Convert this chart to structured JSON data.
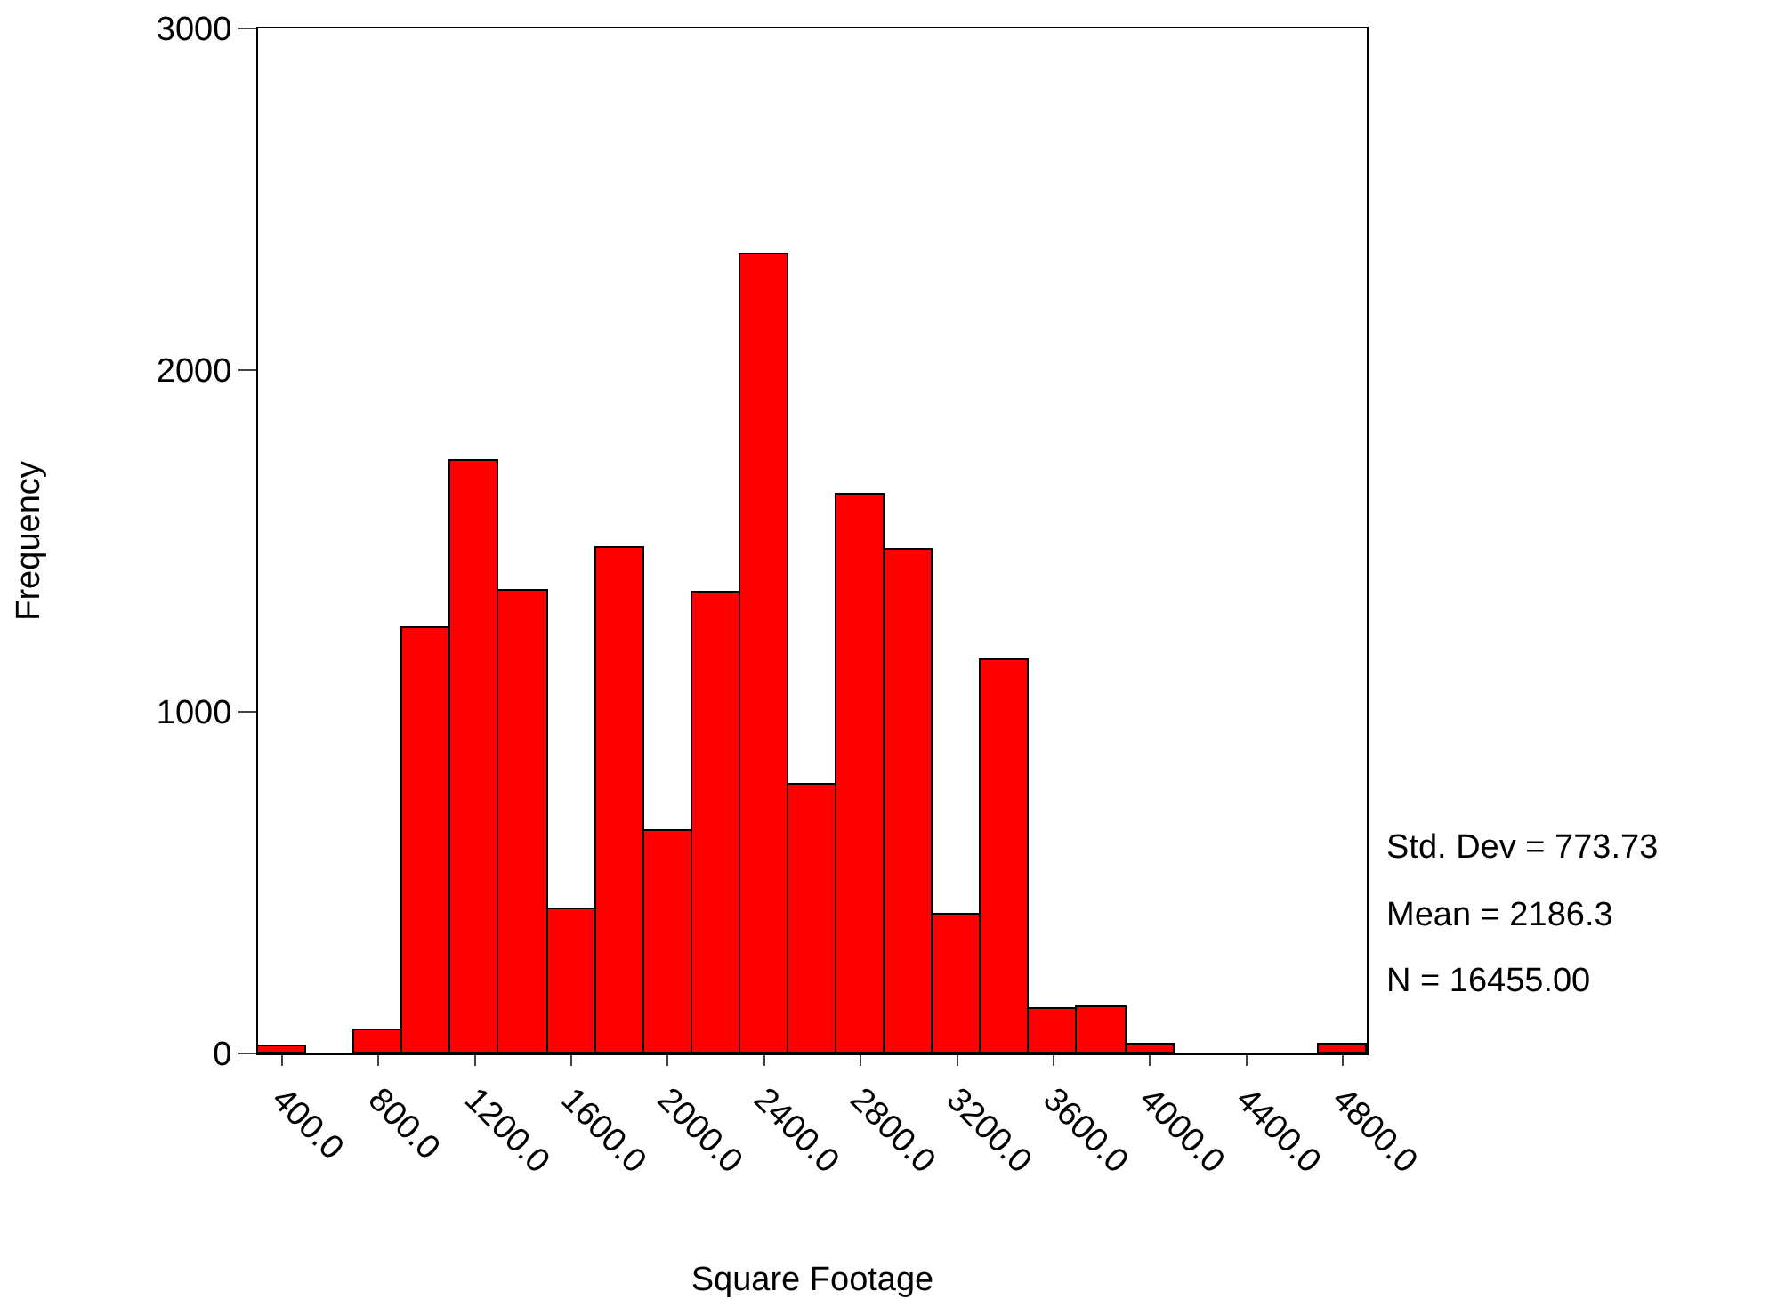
{
  "chart_data": {
    "type": "histogram",
    "xlabel": "Square Footage",
    "ylabel": "Frequency",
    "bins": [
      300,
      500,
      700,
      900,
      1100,
      1300,
      1500,
      1700,
      1900,
      2100,
      2300,
      2500,
      2700,
      2900,
      3100,
      3300,
      3500,
      3700,
      3900,
      4100,
      4300,
      4500,
      4700,
      4900
    ],
    "values": [
      20,
      0,
      70,
      1245,
      1736,
      1356,
      424,
      1478,
      653,
      1349,
      2339,
      788,
      1636,
      1472,
      407,
      1150,
      129,
      135,
      25,
      0,
      0,
      0,
      25
    ],
    "color": "#ff0000",
    "xlim": [
      300,
      4900
    ],
    "xticks": [
      {
        "value": 400,
        "label": "400.0"
      },
      {
        "value": 800,
        "label": "800.0"
      },
      {
        "value": 1200,
        "label": "1200.0"
      },
      {
        "value": 1600,
        "label": "1600.0"
      },
      {
        "value": 2000,
        "label": "2000.0"
      },
      {
        "value": 2400,
        "label": "2400.0"
      },
      {
        "value": 2800,
        "label": "2800.0"
      },
      {
        "value": 3200,
        "label": "3200.0"
      },
      {
        "value": 3600,
        "label": "3600.0"
      },
      {
        "value": 4000,
        "label": "4000.0"
      },
      {
        "value": 4400,
        "label": "4400.0"
      },
      {
        "value": 4800,
        "label": "4800.0"
      }
    ],
    "ylim": [
      0,
      3000
    ],
    "yticks": [
      0,
      1000,
      2000,
      3000
    ],
    "grid": false,
    "annotations": [
      "Std. Dev = 773.73",
      "Mean = 2186.3",
      "N = 16455.00"
    ]
  }
}
